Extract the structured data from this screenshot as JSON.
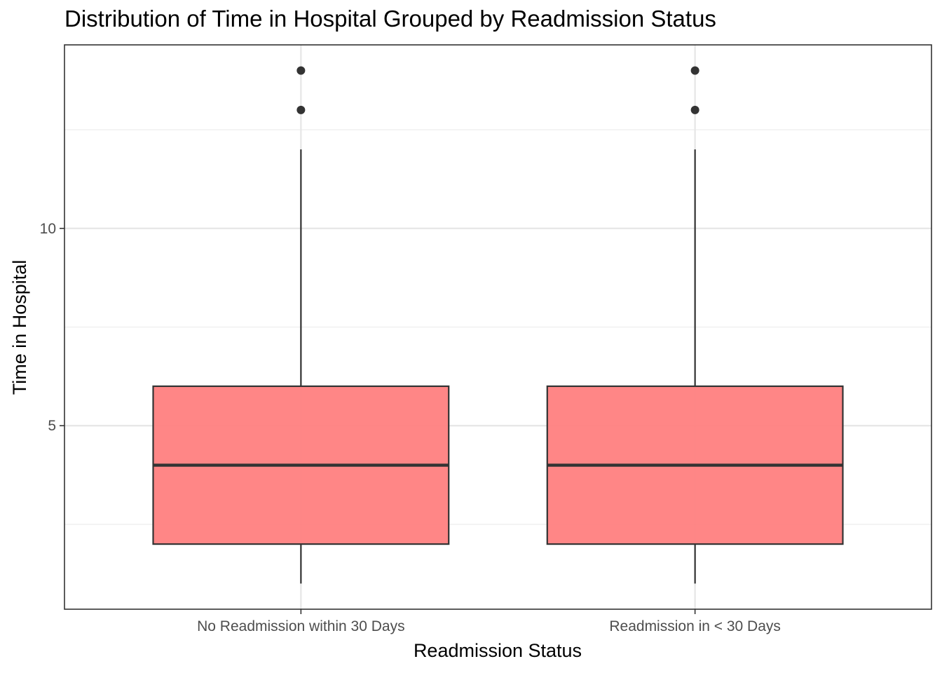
{
  "chart_data": {
    "type": "boxplot",
    "title": "Distribution of Time in Hospital Grouped by Readmission Status",
    "xlabel": "Readmission Status",
    "ylabel": "Time in Hospital",
    "categories": [
      "No Readmission within 30 Days",
      "Readmission in < 30 Days"
    ],
    "boxes": [
      {
        "category": "No Readmission within 30 Days",
        "whisker_low": 1,
        "q1": 2,
        "median": 4,
        "q3": 6,
        "whisker_high": 12,
        "outliers": [
          13,
          14
        ]
      },
      {
        "category": "Readmission in < 30 Days",
        "whisker_low": 1,
        "q1": 2,
        "median": 4,
        "q3": 6,
        "whisker_high": 12,
        "outliers": [
          13,
          14
        ]
      }
    ],
    "y_ticks": [
      5,
      10
    ],
    "ylim": [
      0.35,
      14.65
    ],
    "grid": true,
    "box_fill": "#ff7f7f",
    "box_stroke": "#333333"
  }
}
